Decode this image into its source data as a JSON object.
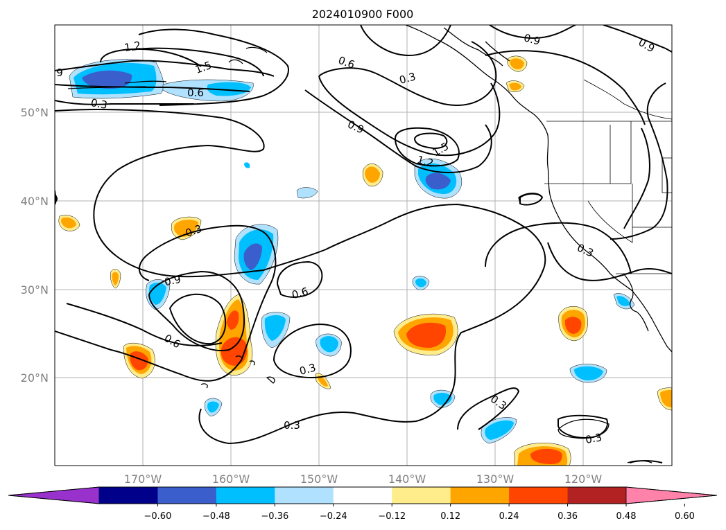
{
  "title": "2024010900 F000",
  "lon_labels": [
    "170°W",
    "160°W",
    "150°W",
    "140°W",
    "130°W",
    "120°W"
  ],
  "lat_labels": [
    "50°N",
    "40°N",
    "30°N",
    "20°N"
  ],
  "contour_labels": [
    "1.2",
    "1.5",
    "9",
    "0.6",
    "0.3",
    "0.6",
    "0.3",
    "0.9",
    "0.9",
    "0.9",
    "1.5",
    "1.2",
    "0.3",
    "0.9",
    "0.6",
    "0.6",
    "0.3",
    "0.3",
    "0.3",
    "0.3",
    "0.3"
  ],
  "colorbar": {
    "ticks": [
      "−0.60",
      "−0.48",
      "−0.36",
      "−0.24",
      "−0.12",
      "0.12",
      "0.24",
      "0.36",
      "0.48",
      "0.60"
    ],
    "colors": [
      "#9932cc",
      "#00008b",
      "#3a5fcd",
      "#00bfff",
      "#b0e2ff",
      "#ffffff",
      "#ffec8b",
      "#ffa500",
      "#ff4500",
      "#b22222",
      "#ff82ab"
    ]
  },
  "palette": {
    "neg_light": "#b0e2ff",
    "neg_mid": "#00bfff",
    "neg_dark": "#3a5fcd",
    "pos_light": "#ffec8b",
    "pos_mid": "#ffa500",
    "pos_dark": "#ff4500"
  }
}
